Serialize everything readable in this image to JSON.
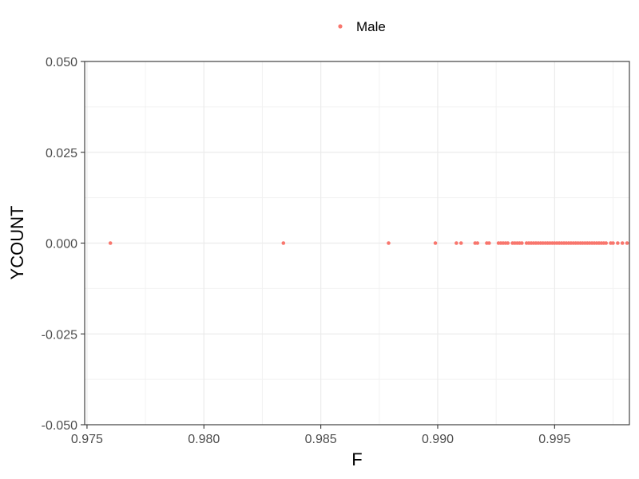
{
  "chart_data": {
    "type": "scatter",
    "xlabel": "F",
    "ylabel": "YCOUNT",
    "xlim": [
      0.9749,
      0.9982
    ],
    "ylim": [
      -0.05,
      0.05
    ],
    "x_ticks": [
      0.975,
      0.98,
      0.985,
      0.99,
      0.995
    ],
    "x_tick_labels": [
      "0.975",
      "0.980",
      "0.985",
      "0.990",
      "0.995"
    ],
    "y_ticks": [
      0.05,
      0.025,
      0.0,
      -0.025,
      -0.05
    ],
    "y_tick_labels": [
      "0.050",
      "0.025",
      "0.000",
      "-0.025",
      "-0.050"
    ],
    "grid": true,
    "legend_position": "top",
    "series": [
      {
        "name": "Male",
        "color": "#F8766D",
        "points": [
          {
            "x": 0.976,
            "y": 0
          },
          {
            "x": 0.9834,
            "y": 0
          },
          {
            "x": 0.9879,
            "y": 0
          },
          {
            "x": 0.9899,
            "y": 0
          },
          {
            "x": 0.9908,
            "y": 0
          },
          {
            "x": 0.991,
            "y": 0
          },
          {
            "x": 0.9916,
            "y": 0
          },
          {
            "x": 0.9917,
            "y": 0
          },
          {
            "x": 0.9921,
            "y": 0
          },
          {
            "x": 0.9922,
            "y": 0
          },
          {
            "x": 0.9926,
            "y": 0
          },
          {
            "x": 0.9927,
            "y": 0
          },
          {
            "x": 0.9928,
            "y": 0
          },
          {
            "x": 0.9929,
            "y": 0
          },
          {
            "x": 0.993,
            "y": 0
          },
          {
            "x": 0.9932,
            "y": 0
          },
          {
            "x": 0.9933,
            "y": 0
          },
          {
            "x": 0.9934,
            "y": 0
          },
          {
            "x": 0.9935,
            "y": 0
          },
          {
            "x": 0.9936,
            "y": 0
          },
          {
            "x": 0.9938,
            "y": 0
          },
          {
            "x": 0.9939,
            "y": 0
          },
          {
            "x": 0.994,
            "y": 0
          },
          {
            "x": 0.9941,
            "y": 0
          },
          {
            "x": 0.9942,
            "y": 0
          },
          {
            "x": 0.9943,
            "y": 0
          },
          {
            "x": 0.9944,
            "y": 0
          },
          {
            "x": 0.9945,
            "y": 0
          },
          {
            "x": 0.9946,
            "y": 0
          },
          {
            "x": 0.9947,
            "y": 0
          },
          {
            "x": 0.9948,
            "y": 0
          },
          {
            "x": 0.9949,
            "y": 0
          },
          {
            "x": 0.995,
            "y": 0
          },
          {
            "x": 0.9951,
            "y": 0
          },
          {
            "x": 0.9952,
            "y": 0
          },
          {
            "x": 0.9953,
            "y": 0
          },
          {
            "x": 0.9954,
            "y": 0
          },
          {
            "x": 0.9955,
            "y": 0
          },
          {
            "x": 0.9956,
            "y": 0
          },
          {
            "x": 0.9957,
            "y": 0
          },
          {
            "x": 0.9958,
            "y": 0
          },
          {
            "x": 0.9959,
            "y": 0
          },
          {
            "x": 0.996,
            "y": 0
          },
          {
            "x": 0.9961,
            "y": 0
          },
          {
            "x": 0.9962,
            "y": 0
          },
          {
            "x": 0.9963,
            "y": 0
          },
          {
            "x": 0.9964,
            "y": 0
          },
          {
            "x": 0.9965,
            "y": 0
          },
          {
            "x": 0.9966,
            "y": 0
          },
          {
            "x": 0.9967,
            "y": 0
          },
          {
            "x": 0.9968,
            "y": 0
          },
          {
            "x": 0.9969,
            "y": 0
          },
          {
            "x": 0.997,
            "y": 0
          },
          {
            "x": 0.9971,
            "y": 0
          },
          {
            "x": 0.9972,
            "y": 0
          },
          {
            "x": 0.9974,
            "y": 0
          },
          {
            "x": 0.9975,
            "y": 0
          },
          {
            "x": 0.9977,
            "y": 0
          },
          {
            "x": 0.9979,
            "y": 0
          },
          {
            "x": 0.9981,
            "y": 0
          }
        ]
      }
    ]
  }
}
